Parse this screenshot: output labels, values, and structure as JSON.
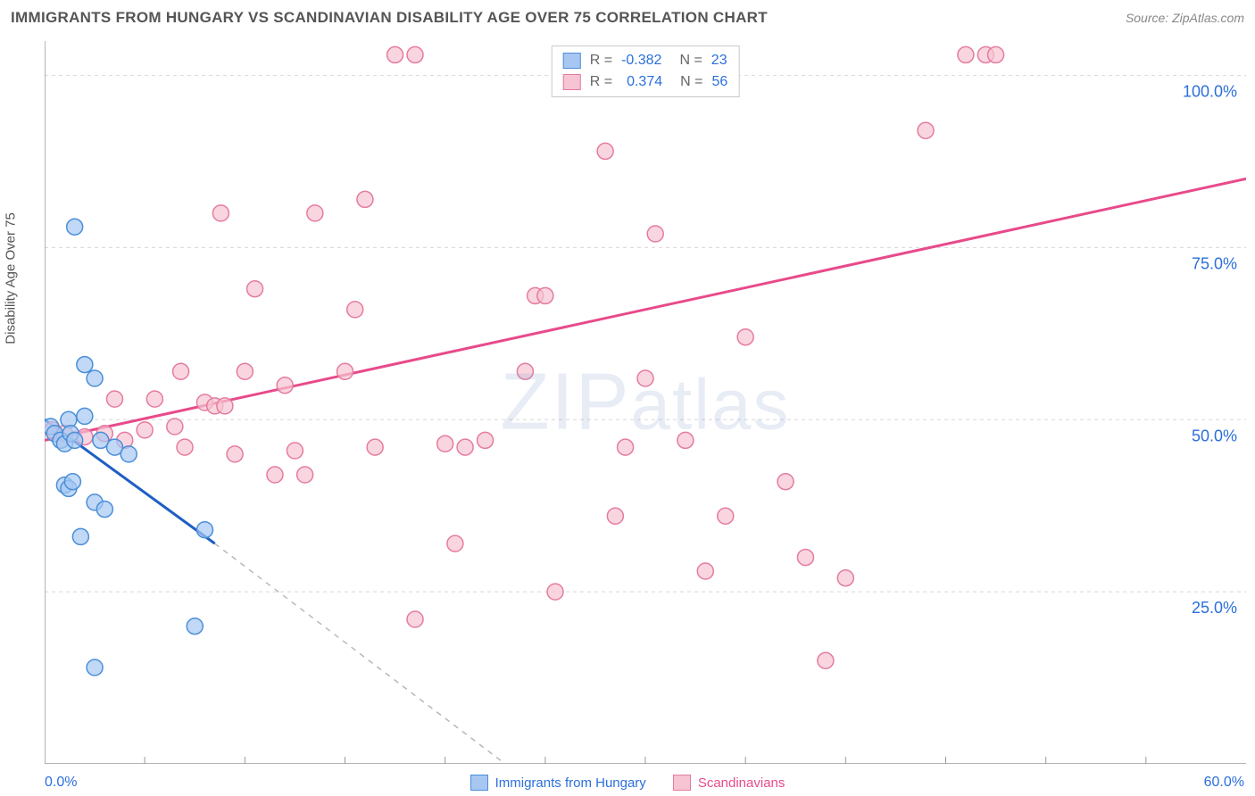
{
  "header": {
    "title": "IMMIGRANTS FROM HUNGARY VS SCANDINAVIAN DISABILITY AGE OVER 75 CORRELATION CHART",
    "source": "Source: ZipAtlas.com"
  },
  "watermark": "ZIPatlas",
  "chart": {
    "type": "scatter",
    "y_axis_label": "Disability Age Over 75",
    "xlim": [
      0,
      60
    ],
    "ylim": [
      0,
      105
    ],
    "x_ticks_minor": [
      5,
      10,
      15,
      20,
      25,
      30,
      35,
      40,
      45,
      50,
      55
    ],
    "y_ticks": [
      25,
      50,
      75,
      100
    ],
    "y_tick_labels": [
      "25.0%",
      "50.0%",
      "75.0%",
      "100.0%"
    ],
    "x_min_label": "0.0%",
    "x_max_label": "60.0%",
    "grid_color": "#d8d8d8",
    "axis_color": "#9a9a9a",
    "y_tick_label_color": "#2b6fdc",
    "background_color": "#ffffff",
    "marker_radius": 9,
    "series": {
      "hungary": {
        "label": "Immigrants from Hungary",
        "fill": "#a7c7f2",
        "stroke": "#4a8fd8",
        "line_color": "#1f5fc4",
        "r_value": "-0.382",
        "n_value": "23",
        "points": [
          [
            0.3,
            49
          ],
          [
            0.5,
            48
          ],
          [
            0.8,
            47
          ],
          [
            1.0,
            46.5
          ],
          [
            1.2,
            50
          ],
          [
            1.3,
            48
          ],
          [
            1.5,
            47
          ],
          [
            1.0,
            40.5
          ],
          [
            1.2,
            40
          ],
          [
            1.4,
            41
          ],
          [
            2.5,
            38
          ],
          [
            3.0,
            37
          ],
          [
            2.0,
            50.5
          ],
          [
            2.8,
            47
          ],
          [
            3.5,
            46
          ],
          [
            4.2,
            45
          ],
          [
            1.5,
            78
          ],
          [
            2.0,
            58
          ],
          [
            2.5,
            56
          ],
          [
            1.8,
            33
          ],
          [
            8.0,
            34
          ],
          [
            7.5,
            20
          ],
          [
            2.5,
            14
          ]
        ],
        "trend": {
          "x1": 0,
          "y1": 50,
          "x2": 8.5,
          "y2": 32
        },
        "trend_dash": {
          "x1": 8.5,
          "y1": 32,
          "x2": 23,
          "y2": 0
        }
      },
      "scandinavian": {
        "label": "Scandinavians",
        "fill": "#f6c4d2",
        "stroke": "#e57ba0",
        "line_color": "#e84a8a",
        "r_value": "0.374",
        "n_value": "56",
        "points": [
          [
            0.4,
            48.5
          ],
          [
            1.0,
            48
          ],
          [
            2.0,
            47.5
          ],
          [
            3.0,
            48
          ],
          [
            4.0,
            47
          ],
          [
            5.0,
            48.5
          ],
          [
            5.5,
            53
          ],
          [
            6.5,
            49
          ],
          [
            7.0,
            46
          ],
          [
            8.0,
            52.5
          ],
          [
            8.5,
            52
          ],
          [
            9.0,
            52
          ],
          [
            9.5,
            45
          ],
          [
            10.0,
            57
          ],
          [
            10.5,
            69
          ],
          [
            12.0,
            55
          ],
          [
            12.5,
            45.5
          ],
          [
            13.0,
            42
          ],
          [
            13.5,
            80
          ],
          [
            15.0,
            57
          ],
          [
            15.5,
            66
          ],
          [
            16.0,
            82
          ],
          [
            16.5,
            46
          ],
          [
            17.5,
            103
          ],
          [
            18.5,
            21
          ],
          [
            20.0,
            46.5
          ],
          [
            20.5,
            32
          ],
          [
            21.0,
            46
          ],
          [
            22.0,
            47
          ],
          [
            24.0,
            57
          ],
          [
            24.5,
            68
          ],
          [
            25.0,
            68
          ],
          [
            25.5,
            25
          ],
          [
            26.5,
            103
          ],
          [
            28.0,
            89
          ],
          [
            28.5,
            36
          ],
          [
            29.0,
            46
          ],
          [
            30.0,
            56
          ],
          [
            30.5,
            77
          ],
          [
            32.0,
            47
          ],
          [
            33.0,
            28
          ],
          [
            34.0,
            36
          ],
          [
            35.0,
            62
          ],
          [
            37.0,
            41
          ],
          [
            38.0,
            30
          ],
          [
            39.0,
            15
          ],
          [
            40.0,
            27
          ],
          [
            44.0,
            92
          ],
          [
            46.0,
            103
          ],
          [
            47.0,
            103
          ],
          [
            47.5,
            103
          ],
          [
            18.5,
            103
          ],
          [
            11.5,
            42
          ],
          [
            8.8,
            80
          ],
          [
            6.8,
            57
          ],
          [
            3.5,
            53
          ]
        ],
        "trend": {
          "x1": 0,
          "y1": 47,
          "x2": 60,
          "y2": 85
        }
      }
    }
  },
  "bottom_legend": {
    "series1": "Immigrants from Hungary",
    "series2": "Scandinavians"
  }
}
